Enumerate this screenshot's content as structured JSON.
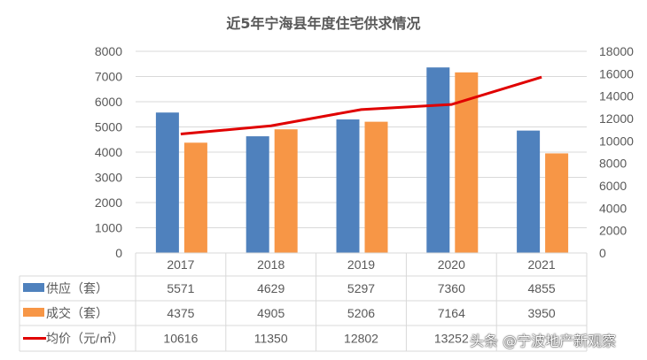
{
  "chart_data": {
    "type": "bar",
    "title": "近5年宁海县年度住宅供求情况",
    "categories": [
      "2017",
      "2018",
      "2019",
      "2020",
      "2021"
    ],
    "series": [
      {
        "name": "供应（套）",
        "type": "bar",
        "axis": "left",
        "color": "#4F81BD",
        "values": [
          5571,
          4629,
          5297,
          7360,
          4855
        ]
      },
      {
        "name": "成交（套）",
        "type": "bar",
        "axis": "left",
        "color": "#F79646",
        "values": [
          4375,
          4905,
          5206,
          7164,
          3950
        ]
      },
      {
        "name": "均价（元/㎡）",
        "type": "line",
        "axis": "right",
        "color": "#E00000",
        "values": [
          10616,
          11350,
          12802,
          13252,
          15700
        ]
      }
    ],
    "table_values": [
      [
        "5571",
        "4629",
        "5297",
        "7360",
        "4855"
      ],
      [
        "4375",
        "4905",
        "5206",
        "7164",
        "3950"
      ],
      [
        "10616",
        "11350",
        "12802",
        "13252",
        ""
      ]
    ],
    "y_left": {
      "range": [
        0,
        8000
      ],
      "ticks": [
        "0",
        "1000",
        "2000",
        "3000",
        "4000",
        "5000",
        "6000",
        "7000",
        "8000"
      ]
    },
    "y_right": {
      "range": [
        0,
        18000
      ],
      "ticks": [
        "0",
        "2000",
        "4000",
        "6000",
        "8000",
        "10000",
        "12000",
        "14000",
        "16000",
        "18000"
      ]
    },
    "grid": true,
    "legend": "data-table"
  },
  "watermark": "头条 @宁波地产新观察"
}
